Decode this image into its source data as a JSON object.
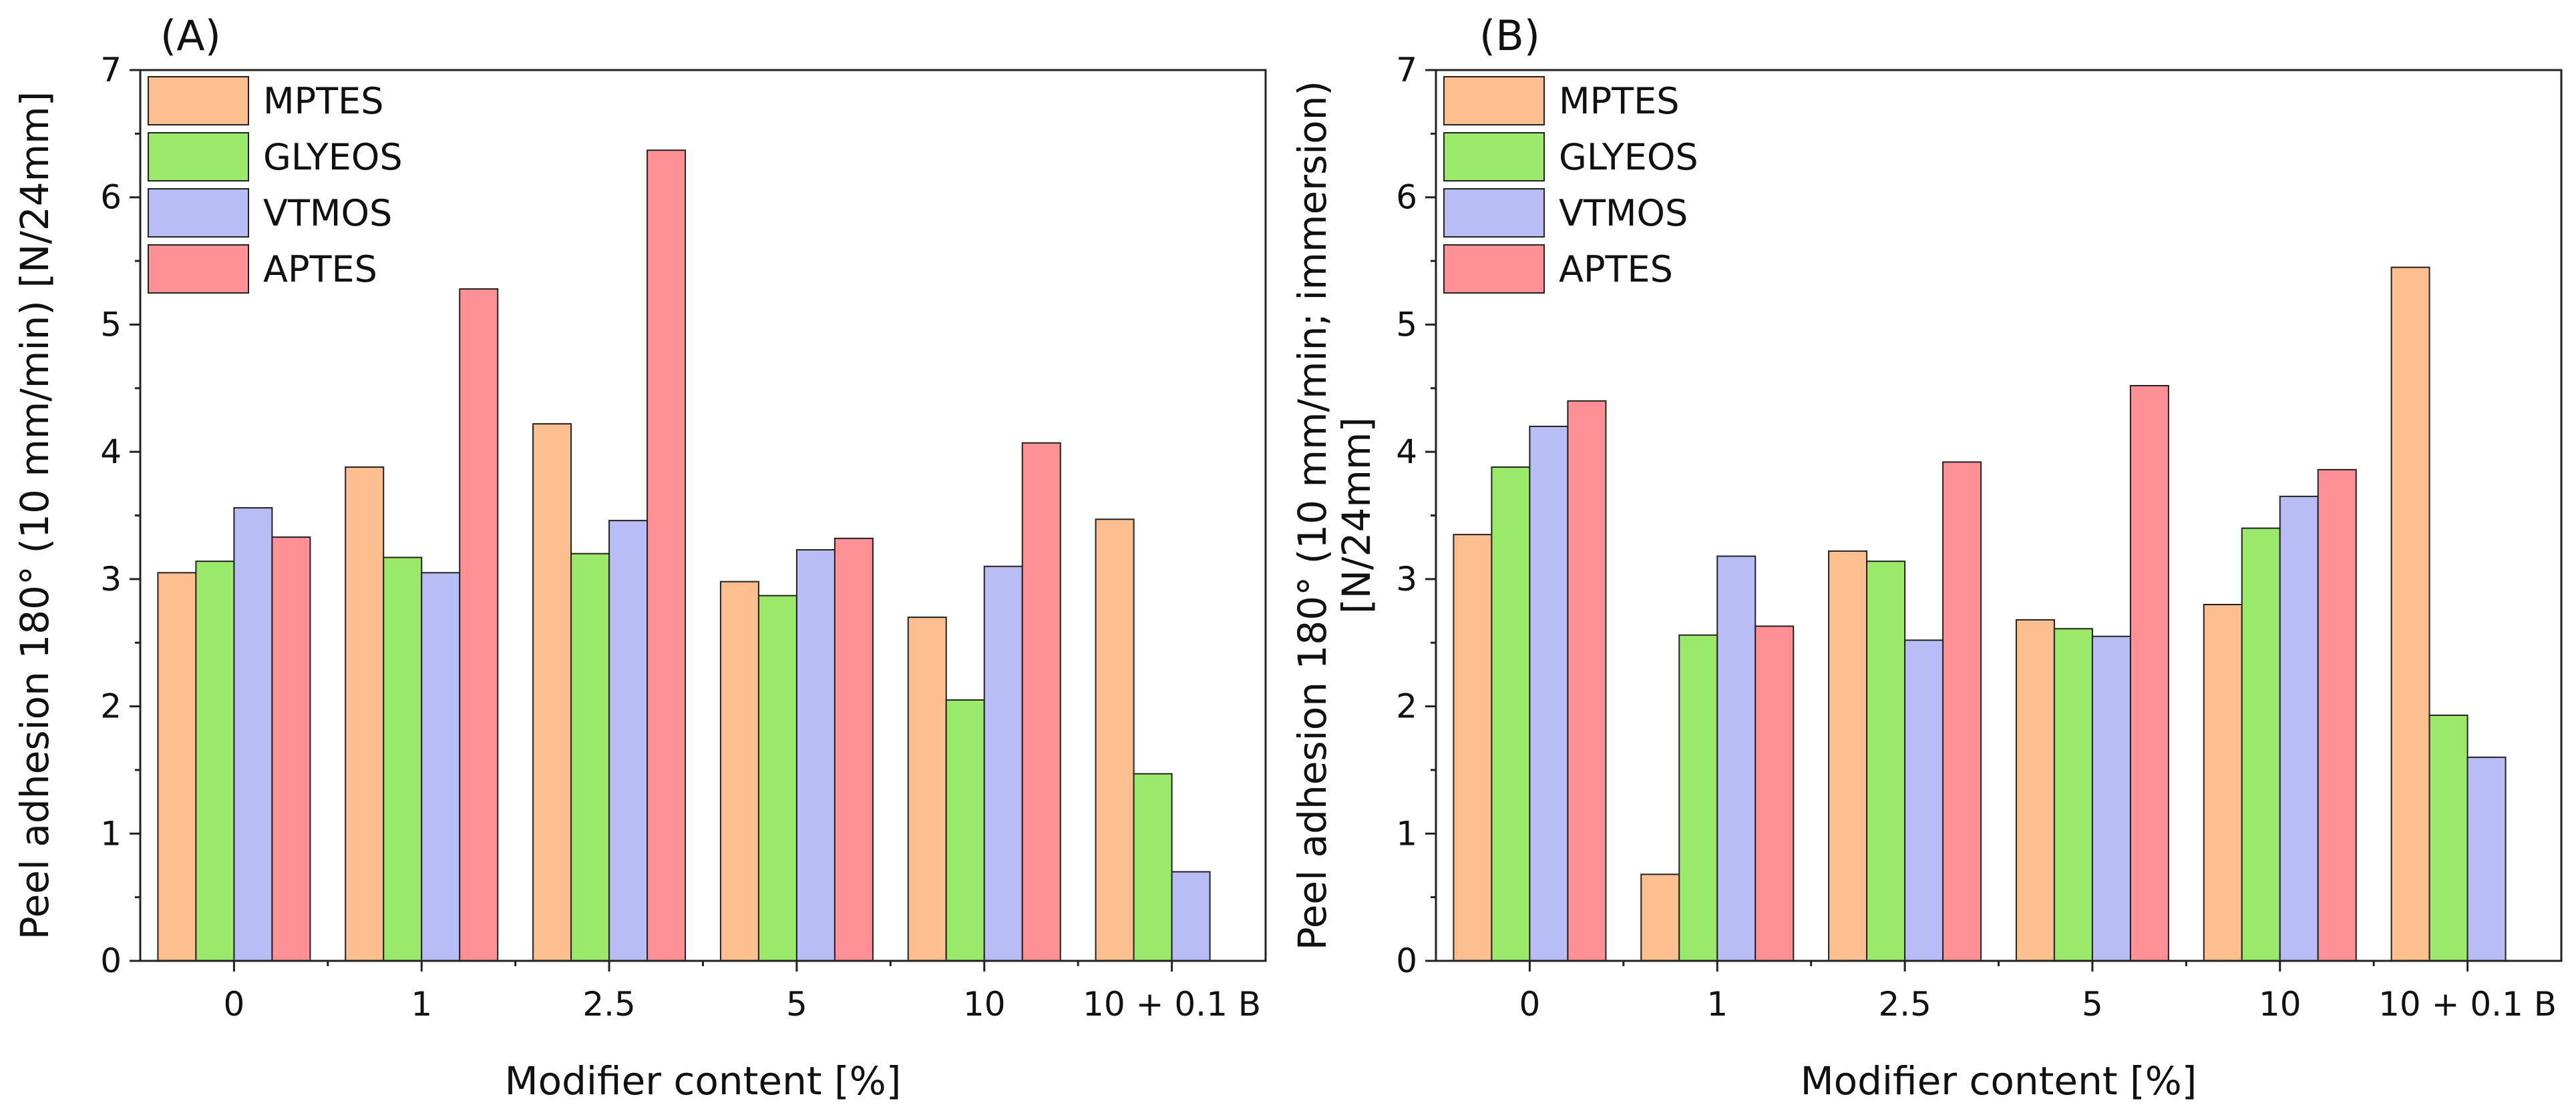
{
  "figure": {
    "description_free": true
  },
  "chart_data": [
    {
      "panel": "(A)",
      "type": "bar",
      "categories": [
        "0",
        "1",
        "2.5",
        "5",
        "10",
        "10 + 0.1 B"
      ],
      "series": [
        {
          "name": "MPTES",
          "color": "#FDBF8F",
          "values": [
            3.05,
            3.88,
            4.22,
            2.98,
            2.7,
            3.47
          ]
        },
        {
          "name": "GLYEOS",
          "color": "#9BE96B",
          "values": [
            3.14,
            3.17,
            3.2,
            2.87,
            2.05,
            1.47
          ]
        },
        {
          "name": "VTMOS",
          "color": "#B8BDF5",
          "values": [
            3.56,
            3.05,
            3.46,
            3.23,
            3.1,
            0.7
          ]
        },
        {
          "name": "APTES",
          "color": "#FF9095",
          "values": [
            3.33,
            5.28,
            6.37,
            3.32,
            4.07,
            null
          ]
        }
      ],
      "xlabel": "Modifier content [%]",
      "ylabel": "Peel adhesion 180° (10 mm/min) [N/24mm]",
      "ylabel_lines": [
        "Peel adhesion 180° (10 mm/min) [N/24mm]"
      ],
      "ylim": [
        0,
        7
      ],
      "yticks": [
        "0",
        "1",
        "2",
        "3",
        "4",
        "5",
        "6",
        "7"
      ],
      "legend": "top-left",
      "grid": false
    },
    {
      "panel": "(B)",
      "type": "bar",
      "categories": [
        "0",
        "1",
        "2.5",
        "5",
        "10",
        "10 + 0.1 B"
      ],
      "series": [
        {
          "name": "MPTES",
          "color": "#FDBF8F",
          "values": [
            3.35,
            0.68,
            3.22,
            2.68,
            2.8,
            5.45
          ]
        },
        {
          "name": "GLYEOS",
          "color": "#9BE96B",
          "values": [
            3.88,
            2.56,
            3.14,
            2.61,
            3.4,
            1.93
          ]
        },
        {
          "name": "VTMOS",
          "color": "#B8BDF5",
          "values": [
            4.2,
            3.18,
            2.52,
            2.55,
            3.65,
            1.6
          ]
        },
        {
          "name": "APTES",
          "color": "#FF9095",
          "values": [
            4.4,
            2.63,
            3.92,
            4.52,
            3.86,
            null
          ]
        }
      ],
      "xlabel": "Modifier content [%]",
      "ylabel": "Peel adhesion 180° (10 mm/min; immersion) [N/24mm]",
      "ylabel_lines": [
        "Peel adhesion 180° (10 mm/min; immersion)",
        "[N/24mm]"
      ],
      "ylim": [
        0,
        7
      ],
      "yticks": [
        "0",
        "1",
        "2",
        "3",
        "4",
        "5",
        "6",
        "7"
      ],
      "legend": "top-left",
      "grid": false
    }
  ]
}
